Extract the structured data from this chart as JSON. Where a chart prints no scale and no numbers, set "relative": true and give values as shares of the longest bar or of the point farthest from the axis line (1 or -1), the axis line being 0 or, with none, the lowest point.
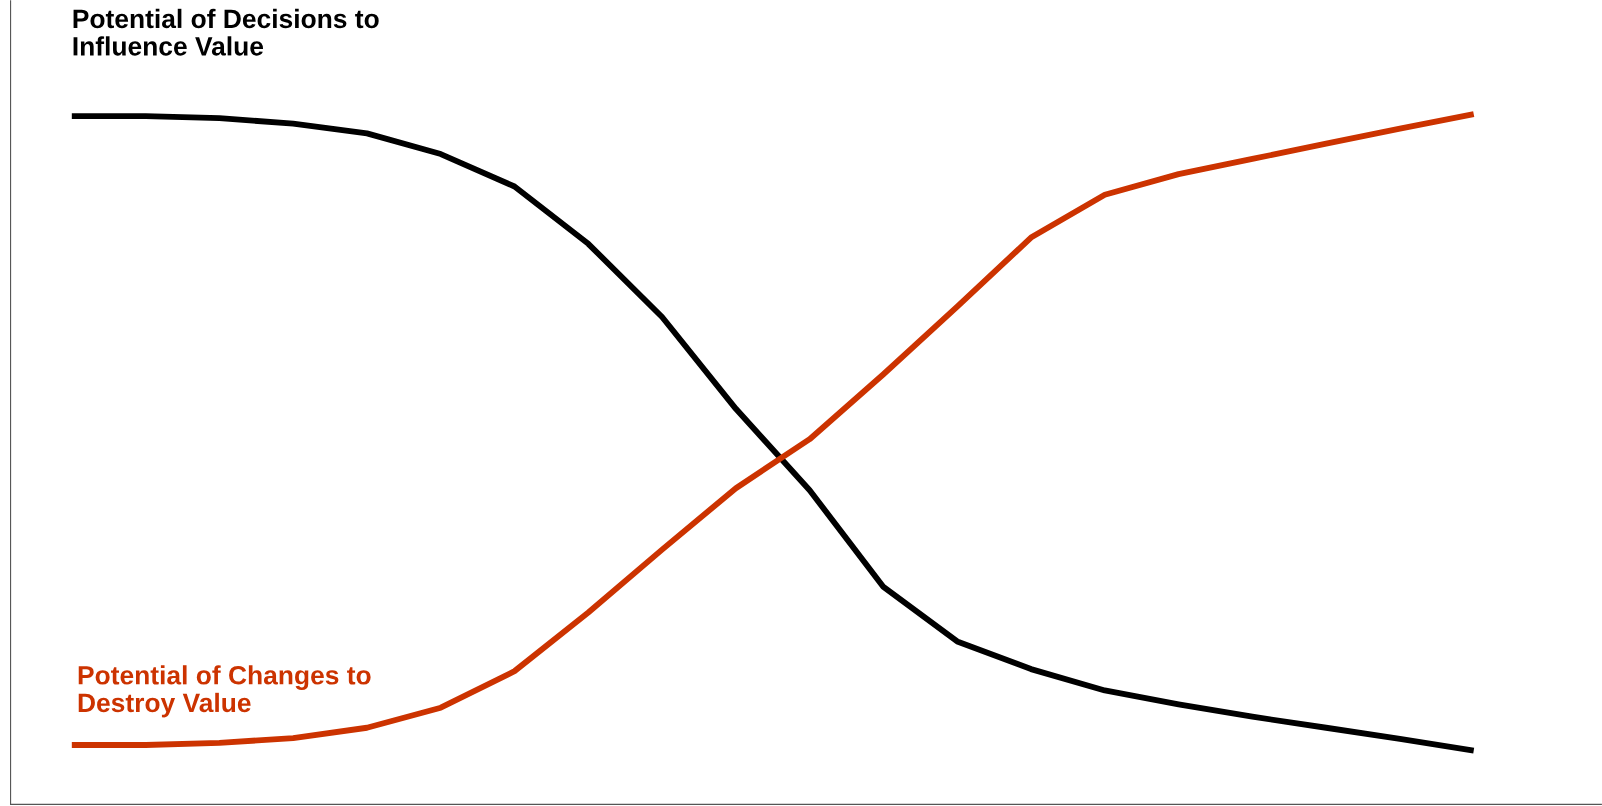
{
  "chart_data": {
    "type": "line",
    "relative": true,
    "categories": [
      null,
      null,
      null,
      null,
      null,
      null,
      null,
      null,
      null,
      null,
      null,
      null,
      null,
      null,
      null,
      null,
      null,
      null,
      null,
      null
    ],
    "series": [
      {
        "name": "Potential of Decisions to\nInfluence Value",
        "color": "#000000",
        "values": [
          0.997,
          0.997,
          0.994,
          0.986,
          0.972,
          0.942,
          0.895,
          0.812,
          0.706,
          0.573,
          0.455,
          0.315,
          0.236,
          0.196,
          0.165,
          0.145,
          0.127,
          0.111,
          0.095,
          0.078
        ]
      },
      {
        "name": "Potential of Changes to\nDestroy Value",
        "color": "#cc3300",
        "values": [
          0.086,
          0.086,
          0.089,
          0.096,
          0.111,
          0.14,
          0.193,
          0.278,
          0.369,
          0.458,
          0.529,
          0.623,
          0.721,
          0.821,
          0.883,
          0.913,
          0.935,
          0.957,
          0.979,
          1.0
        ]
      }
    ],
    "grid": false,
    "legend": false,
    "marker": "none",
    "line_style": "solid"
  }
}
